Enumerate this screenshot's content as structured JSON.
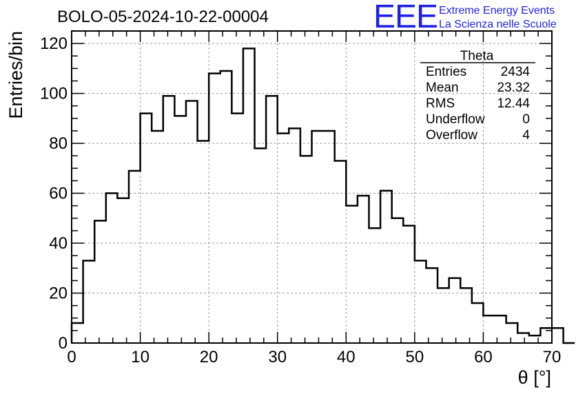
{
  "chart_data": {
    "type": "histogram",
    "title": "BOLO-05-2024-10-22-00004",
    "xlabel": "θ [°]",
    "ylabel": "Entries/bin",
    "xlim": [
      0,
      70
    ],
    "ylim": [
      0,
      125
    ],
    "grid": true,
    "xticks": [
      0,
      10,
      20,
      30,
      40,
      50,
      60,
      70
    ],
    "yticks": [
      0,
      20,
      40,
      60,
      80,
      100,
      120
    ],
    "bin_width": 1.6667,
    "values": [
      8,
      33,
      49,
      60,
      58,
      69,
      92,
      85,
      99,
      91,
      97,
      81,
      108,
      109,
      92,
      118,
      78,
      99,
      84,
      86,
      75,
      85,
      85,
      73,
      55,
      59,
      46,
      61,
      50,
      47,
      33,
      30,
      22,
      26,
      22,
      16,
      11,
      11,
      8,
      4,
      3,
      6,
      6,
      0
    ],
    "stats_box": {
      "title": "Theta",
      "rows": [
        {
          "label": "Entries",
          "value": "2434"
        },
        {
          "label": "Mean",
          "value": "23.32"
        },
        {
          "label": "RMS",
          "value": "12.44"
        },
        {
          "label": "Underflow",
          "value": "0"
        },
        {
          "label": "Overflow",
          "value": "4"
        }
      ],
      "position": "top-right"
    }
  },
  "logo": {
    "mark": "EEE",
    "line1": "Extreme Energy Events",
    "line2": "La Scienza nelle Scuole",
    "color": "#1f1fe6"
  }
}
